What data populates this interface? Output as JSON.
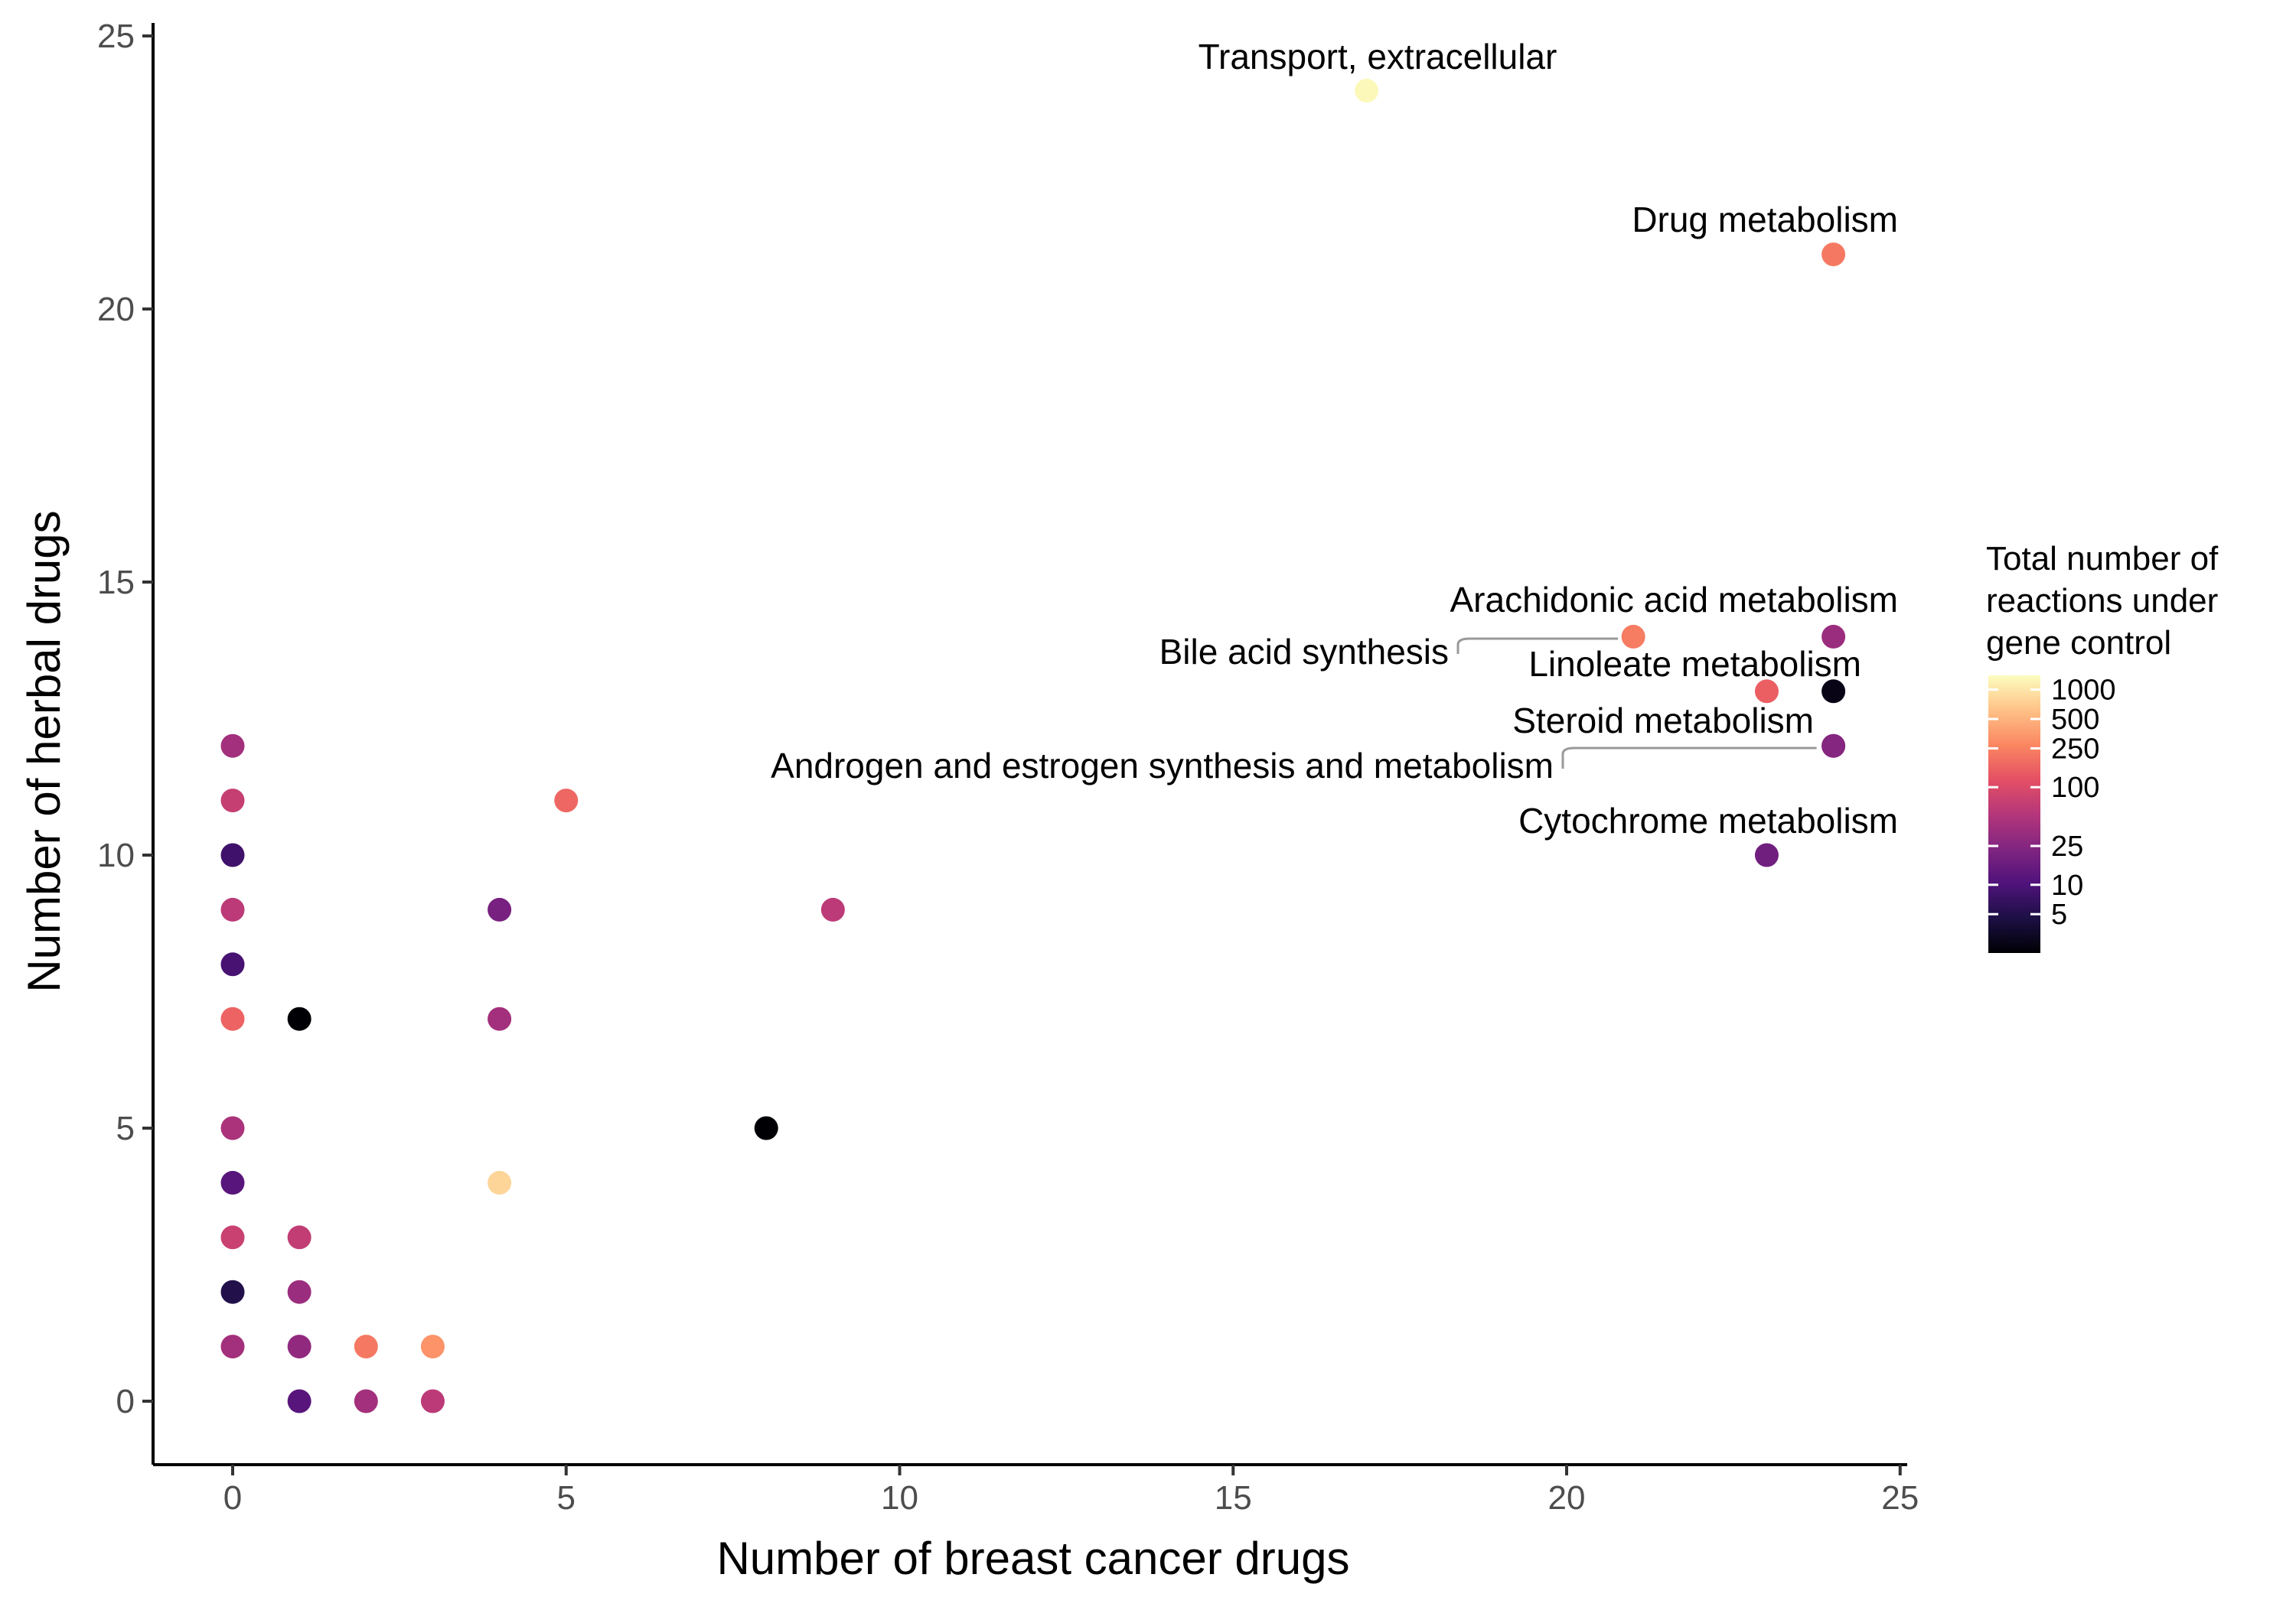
{
  "chart_data": {
    "type": "scatter",
    "title": "",
    "xlabel": "Number of breast cancer drugs",
    "ylabel": "Number of herbal drugs",
    "xlim": [
      -1.2,
      25.2
    ],
    "ylim": [
      -1.2,
      25.4
    ],
    "x_ticks": [
      0,
      5,
      10,
      15,
      20,
      25
    ],
    "y_ticks": [
      0,
      5,
      10,
      15,
      20,
      25
    ],
    "grid": false,
    "legend": {
      "title_lines": [
        "Total number of",
        "reactions under",
        "gene control"
      ],
      "scale": "log",
      "range": [
        2,
        1400
      ],
      "ticks": [
        1000,
        500,
        250,
        100,
        25,
        10,
        5
      ],
      "tick_labels": [
        "1000",
        "500",
        "250",
        "100",
        "25",
        "10",
        "5"
      ],
      "palette": "magma",
      "placement": "right"
    },
    "points": [
      {
        "x": 17,
        "y": 24,
        "c": 1300,
        "label": "Transport, extracellular"
      },
      {
        "x": 24,
        "y": 21,
        "c": 220,
        "label": "Drug metabolism"
      },
      {
        "x": 21,
        "y": 14,
        "c": 230,
        "label": "Bile acid synthesis"
      },
      {
        "x": 24,
        "y": 14,
        "c": 35,
        "label": "Arachidonic acid metabolism"
      },
      {
        "x": 23,
        "y": 13,
        "c": 150,
        "label": "Linoleate metabolism"
      },
      {
        "x": 24,
        "y": 13,
        "c": 2.5,
        "label": ""
      },
      {
        "x": 24,
        "y": 12,
        "c": 25,
        "label": "Steroid metabolism"
      },
      {
        "x": 24,
        "y": 12,
        "c": 25,
        "label": "Androgen and estrogen synthesis and metabolism"
      },
      {
        "x": 23,
        "y": 10,
        "c": 18,
        "label": "Cytochrome metabolism"
      },
      {
        "x": 0,
        "y": 12,
        "c": 40,
        "label": ""
      },
      {
        "x": 0,
        "y": 11,
        "c": 70,
        "label": ""
      },
      {
        "x": 0,
        "y": 10,
        "c": 8,
        "label": ""
      },
      {
        "x": 0,
        "y": 9,
        "c": 60,
        "label": ""
      },
      {
        "x": 0,
        "y": 8,
        "c": 9,
        "label": ""
      },
      {
        "x": 0,
        "y": 7,
        "c": 160,
        "label": ""
      },
      {
        "x": 0,
        "y": 5,
        "c": 45,
        "label": ""
      },
      {
        "x": 0,
        "y": 4,
        "c": 12,
        "label": ""
      },
      {
        "x": 0,
        "y": 3,
        "c": 75,
        "label": ""
      },
      {
        "x": 0,
        "y": 2,
        "c": 5,
        "label": ""
      },
      {
        "x": 0,
        "y": 1,
        "c": 40,
        "label": ""
      },
      {
        "x": 1,
        "y": 7,
        "c": 1.5,
        "label": ""
      },
      {
        "x": 1,
        "y": 3,
        "c": 65,
        "label": ""
      },
      {
        "x": 1,
        "y": 2,
        "c": 35,
        "label": ""
      },
      {
        "x": 1,
        "y": 1,
        "c": 30,
        "label": ""
      },
      {
        "x": 1,
        "y": 0,
        "c": 12,
        "label": ""
      },
      {
        "x": 2,
        "y": 1,
        "c": 220,
        "label": ""
      },
      {
        "x": 2,
        "y": 0,
        "c": 40,
        "label": ""
      },
      {
        "x": 3,
        "y": 1,
        "c": 320,
        "label": ""
      },
      {
        "x": 3,
        "y": 0,
        "c": 60,
        "label": ""
      },
      {
        "x": 4,
        "y": 9,
        "c": 20,
        "label": ""
      },
      {
        "x": 4,
        "y": 7,
        "c": 40,
        "label": ""
      },
      {
        "x": 4,
        "y": 4,
        "c": 800,
        "label": ""
      },
      {
        "x": 5,
        "y": 11,
        "c": 170,
        "label": ""
      },
      {
        "x": 8,
        "y": 5,
        "c": 2,
        "label": ""
      },
      {
        "x": 9,
        "y": 9,
        "c": 60,
        "label": ""
      }
    ]
  }
}
